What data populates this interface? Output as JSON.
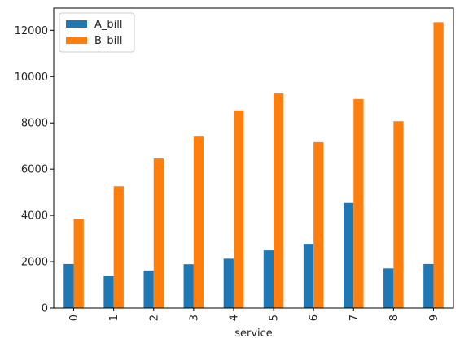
{
  "chart_data": {
    "type": "bar",
    "xlabel": "service",
    "ylabel": "",
    "categories": [
      "0",
      "1",
      "2",
      "3",
      "4",
      "5",
      "6",
      "7",
      "8",
      "9"
    ],
    "series": [
      {
        "name": "A_bill",
        "color": "#1f77b4",
        "values": [
          1900,
          1370,
          1620,
          1890,
          2130,
          2490,
          2770,
          4540,
          1710,
          1900
        ]
      },
      {
        "name": "B_bill",
        "color": "#ff7f0e",
        "values": [
          3850,
          5260,
          6460,
          7440,
          8540,
          9270,
          7170,
          9030,
          8070,
          12350
        ]
      }
    ],
    "ylim": [
      0,
      12960
    ],
    "yticks": [
      0,
      2000,
      4000,
      6000,
      8000,
      10000,
      12000
    ],
    "legend": "top-left",
    "grid": false,
    "xtick_rotation": "vertical"
  }
}
